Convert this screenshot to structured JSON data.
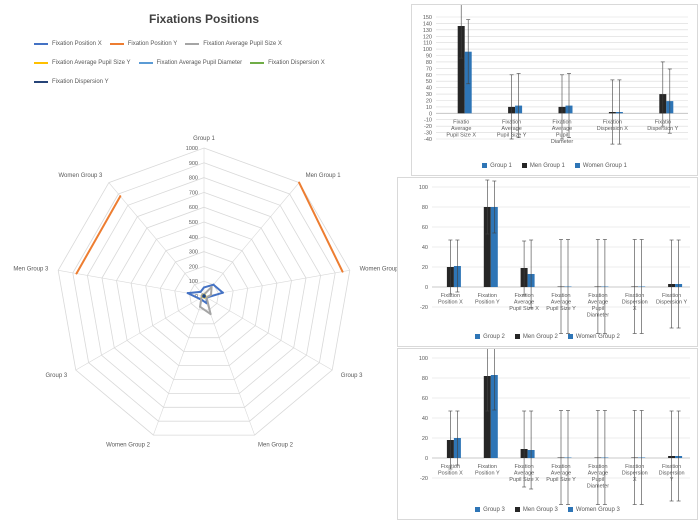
{
  "colors": {
    "grid": "#d9d9d9",
    "axis_text": "#595959",
    "black": "#262626",
    "blue": "#2e75b6",
    "orange": "#ed7d31",
    "gray": "#a5a5a5",
    "yellow": "#ffc000",
    "lightblue": "#4472c4",
    "green": "#70ad47",
    "navy": "#264478"
  },
  "chart_data": [
    {
      "type": "radar",
      "title": "Fixations Positions",
      "axes": [
        "Group 1",
        "Men Group 1",
        "Women Group 1",
        "Group 3",
        "Men Group 2",
        "Women Group 2",
        "Group 3",
        "Men Group 3",
        "Women Group 3"
      ],
      "rlim": [
        0,
        1000
      ],
      "r_ticks": [
        "0",
        "100",
        "200",
        "300",
        "400",
        "500",
        "600",
        "700",
        "800",
        "900",
        "1000"
      ],
      "grid": true,
      "legend_position": "top",
      "series": [
        {
          "name": "Fixation Position X",
          "color": "#4472c4",
          "values": [
            58,
            100,
            130,
            22,
            52,
            31,
            36,
            112,
            36
          ]
        },
        {
          "name": "Fixation Position Y",
          "color": "#ed7d31",
          "values": [
            0,
            1000,
            950,
            0,
            0,
            860,
            0,
            875,
            880
          ]
        },
        {
          "name": "Fixation Average Pupil Size X",
          "color": "#a5a5a5",
          "values": [
            10,
            80,
            48,
            20,
            130,
            78,
            20,
            15,
            16
          ]
        },
        {
          "name": "Fixation Average Pupil Size Y",
          "color": "#ffc000",
          "values": [
            10,
            8,
            8,
            10,
            12,
            8,
            10,
            8,
            8
          ]
        },
        {
          "name": "Fixation Average Pupil Diameter",
          "color": "#5b9bd5",
          "values": [
            8,
            6,
            6,
            8,
            8,
            6,
            8,
            6,
            6
          ]
        },
        {
          "name": "Fixation Dispersion X",
          "color": "#70ad47",
          "values": [
            4,
            3,
            3,
            4,
            4,
            3,
            4,
            3,
            3
          ]
        },
        {
          "name": "Fixation Dispersion Y",
          "color": "#264478",
          "values": [
            5,
            4,
            4,
            5,
            5,
            4,
            5,
            4,
            4
          ]
        }
      ]
    },
    {
      "type": "bar",
      "categories": [
        "Fixation Average Pupil Size X",
        "Fixation Average Pupil Size Y",
        "Fixation Average Pupil Diameter",
        "Fixation Dispersion X",
        "Fixation Dispersion Y"
      ],
      "category_labels": [
        [
          "Fixatio",
          "Average",
          "Pupil Size X"
        ],
        [
          "Fixation",
          "Average",
          "Pupil Size Y"
        ],
        [
          "Fixation",
          "Average",
          "Pupil",
          "Diameter"
        ],
        [
          "Fixation",
          "Dispersion X"
        ],
        [
          "Fixatio",
          "Dispersion Y"
        ]
      ],
      "series": [
        {
          "name": "Group 1",
          "color": "#2e75b6",
          "values": [
            0,
            0,
            0,
            0,
            0
          ]
        },
        {
          "name": "Men Group 1",
          "color": "#262626",
          "values": [
            136,
            10,
            10,
            2,
            30
          ]
        },
        {
          "name": "Women Group 1",
          "color": "#2e75b6",
          "values": [
            96,
            12,
            12,
            2,
            19
          ]
        }
      ],
      "error_bars": [
        [
          0,
          0,
          0,
          0,
          0
        ],
        [
          50,
          50,
          50,
          50,
          50
        ],
        [
          50,
          50,
          50,
          50,
          50
        ]
      ],
      "ylim": [
        -40,
        150
      ],
      "y_ticks": [
        -40,
        -30,
        -20,
        -10,
        0,
        10,
        20,
        30,
        40,
        50,
        60,
        70,
        80,
        90,
        100,
        110,
        120,
        130,
        140,
        150
      ],
      "legend_position": "bottom"
    },
    {
      "type": "bar",
      "categories": [
        "Fixation Position X",
        "Fixation Position Y",
        "Fixation Average Pupil Size X",
        "Fixation Average Pupil Size Y",
        "Fixation Average Pupil Diameter",
        "Fixation Dispersion X",
        "Fixation Dispersion Y"
      ],
      "category_labels": [
        [
          "Fixation",
          "Position X"
        ],
        [
          "Fixation",
          "Position Y"
        ],
        [
          "Fixation",
          "Average",
          "Pupil Size X"
        ],
        [
          "Fixation",
          "Average",
          "Pupil Size Y"
        ],
        [
          "Fixation",
          "Average",
          "Pupil",
          "Diameter"
        ],
        [
          "Fixation",
          "Dispersion",
          "X"
        ],
        [
          "Fixation",
          "Dispersion Y"
        ]
      ],
      "series": [
        {
          "name": "Group 2",
          "color": "#2e75b6",
          "values": [
            0,
            0,
            0,
            0,
            0,
            0,
            0
          ]
        },
        {
          "name": "Men Group 2",
          "color": "#262626",
          "values": [
            20,
            80,
            19,
            0.5,
            0.5,
            0.5,
            3
          ]
        },
        {
          "name": "Women Group 2",
          "color": "#2e75b6",
          "values": [
            21,
            80,
            13,
            0.5,
            0.5,
            0.5,
            3
          ]
        }
      ],
      "error_bars": [
        [
          0,
          0,
          0,
          0,
          0,
          0,
          0
        ],
        [
          27,
          27,
          27,
          47,
          47,
          47,
          44
        ],
        [
          26,
          26,
          34,
          47,
          47,
          47,
          44
        ]
      ],
      "ylim": [
        -20,
        100
      ],
      "y_ticks": [
        -20,
        0,
        20,
        40,
        60,
        80,
        100
      ],
      "legend_position": "bottom"
    },
    {
      "type": "bar",
      "categories": [
        "Fixation Position X",
        "Fixation Position Y",
        "Fixation Average Pupil Size X",
        "Fixation Average Pupil Size Y",
        "Fixation Average Pupil Diameter",
        "Fixation Dispersion X",
        "Fixation Dispersion Y"
      ],
      "category_labels": [
        [
          "Fixation",
          "Position X"
        ],
        [
          "Fixation",
          "Position Y"
        ],
        [
          "Fixation",
          "Average",
          "Pupil Size X"
        ],
        [
          "Fixation",
          "Average",
          "Pupil Size Y"
        ],
        [
          "Fixation",
          "Average",
          "Pupil",
          "Diameter"
        ],
        [
          "Fixation",
          "Dispersion",
          "X"
        ],
        [
          "Fixation",
          "Dispersion",
          "Y"
        ]
      ],
      "series": [
        {
          "name": "Group 3",
          "color": "#2e75b6",
          "values": [
            0,
            0,
            0,
            0,
            0,
            0,
            0
          ]
        },
        {
          "name": "Men Group 3",
          "color": "#262626",
          "values": [
            18,
            82,
            9,
            0.5,
            0.5,
            0.5,
            2
          ]
        },
        {
          "name": "Women Group 3",
          "color": "#2e75b6",
          "values": [
            20,
            83,
            8,
            0.5,
            0.5,
            0.5,
            2
          ]
        }
      ],
      "error_bars": [
        [
          0,
          0,
          0,
          0,
          0,
          0,
          0
        ],
        [
          29,
          35,
          38,
          47,
          47,
          47,
          45
        ],
        [
          27,
          35,
          39,
          47,
          47,
          47,
          45
        ]
      ],
      "ylim": [
        -20,
        100
      ],
      "y_ticks": [
        -20,
        0,
        20,
        40,
        60,
        80,
        100
      ],
      "legend_position": "bottom"
    }
  ]
}
